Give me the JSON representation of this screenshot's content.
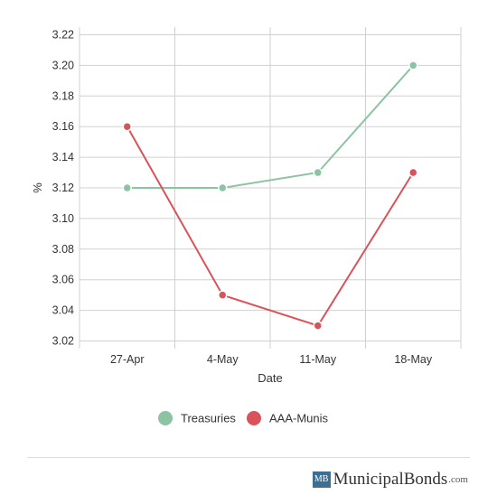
{
  "chart_data": {
    "type": "line",
    "categories": [
      "27-Apr",
      "4-May",
      "11-May",
      "18-May"
    ],
    "series": [
      {
        "name": "Treasuries",
        "color": "#8cc4a2",
        "values": [
          3.12,
          3.12,
          3.13,
          3.2
        ]
      },
      {
        "name": "AAA-Munis",
        "color": "#d9535a",
        "values": [
          3.16,
          3.05,
          3.03,
          3.13
        ]
      }
    ],
    "xlabel": "Date",
    "ylabel": "%",
    "ylim": [
      3.015,
      3.225
    ],
    "yticks": [
      3.22,
      3.2,
      3.18,
      3.16,
      3.14,
      3.12,
      3.1,
      3.08,
      3.06,
      3.04,
      3.02
    ],
    "grid": true,
    "legend_position": "bottom"
  },
  "footer": {
    "logo_text": "MB",
    "brand_name": "MunicipalBonds",
    "brand_tld": ".com"
  }
}
